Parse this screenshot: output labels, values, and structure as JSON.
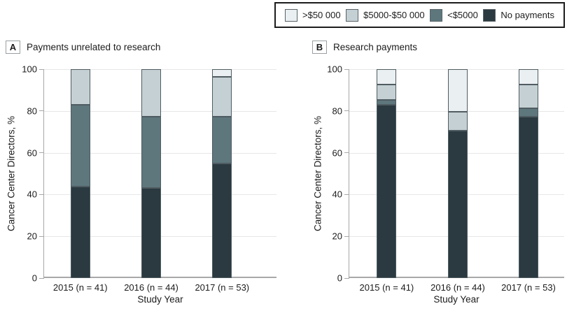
{
  "legend": {
    "items": [
      {
        "label": ">$50 000",
        "color": "#eaeff1"
      },
      {
        "label": "$5000-$50 000",
        "color": "#c4d0d3"
      },
      {
        "label": "<$5000",
        "color": "#5d777d"
      },
      {
        "label": "No payments",
        "color": "#2a3a40"
      }
    ]
  },
  "y_axis": {
    "label": "Cancer Center Directors, %",
    "ticks": [
      0,
      20,
      40,
      60,
      80,
      100
    ]
  },
  "x_axis": {
    "label": "Study Year"
  },
  "chart_data": [
    {
      "type": "bar",
      "stacked": true,
      "panel_letter": "A",
      "title": "Payments unrelated to research",
      "categories": [
        "2015 (n = 41)",
        "2016 (n = 44)",
        "2017 (n = 53)"
      ],
      "series": [
        {
          "name": "No payments",
          "color": "#2a3a40",
          "values": [
            43.9,
            43.2,
            54.7
          ]
        },
        {
          "name": "<$5000",
          "color": "#5d777d",
          "values": [
            39.0,
            34.1,
            22.6
          ]
        },
        {
          "name": "$5000-$50 000",
          "color": "#c4d0d3",
          "values": [
            17.1,
            22.7,
            18.9
          ]
        },
        {
          "name": ">$50 000",
          "color": "#eaeff1",
          "values": [
            0,
            0,
            3.8
          ]
        }
      ],
      "ylim": [
        0,
        100
      ],
      "ylabel": "Cancer Center Directors, %",
      "xlabel": "Study Year",
      "legend_position": "top-right",
      "grid": true
    },
    {
      "type": "bar",
      "stacked": true,
      "panel_letter": "B",
      "title": "Research payments",
      "categories": [
        "2015 (n = 41)",
        "2016 (n = 44)",
        "2017 (n = 53)"
      ],
      "series": [
        {
          "name": "No payments",
          "color": "#2a3a40",
          "values": [
            82.9,
            70.5,
            77.4
          ]
        },
        {
          "name": "<$5000",
          "color": "#5d777d",
          "values": [
            2.4,
            0,
            3.8
          ]
        },
        {
          "name": "$5000-$50 000",
          "color": "#c4d0d3",
          "values": [
            7.3,
            9.1,
            11.3
          ]
        },
        {
          "name": ">$50 000",
          "color": "#eaeff1",
          "values": [
            7.4,
            20.4,
            7.5
          ]
        }
      ],
      "ylim": [
        0,
        100
      ],
      "ylabel": "Cancer Center Directors, %",
      "xlabel": "Study Year",
      "grid": true
    }
  ]
}
